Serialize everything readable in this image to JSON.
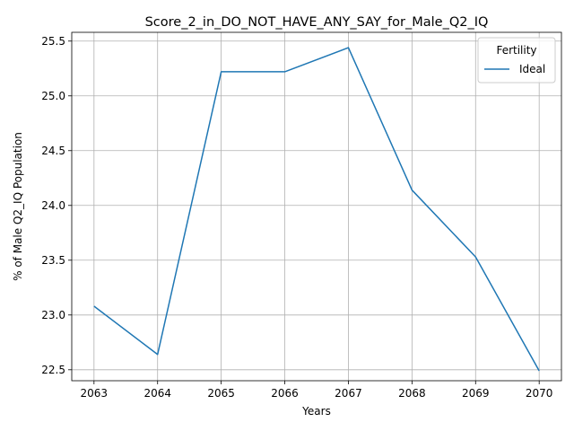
{
  "chart_data": {
    "type": "line",
    "title": "Score_2_in_DO_NOT_HAVE_ANY_SAY_for_Male_Q2_IQ",
    "xlabel": "Years",
    "ylabel": "% of Male Q2_IQ Population",
    "x": [
      2063,
      2064,
      2065,
      2066,
      2067,
      2068,
      2069,
      2070
    ],
    "xlim": [
      2062.65,
      2070.35
    ],
    "ylim": [
      22.4,
      25.58
    ],
    "xticks": [
      "2063",
      "2064",
      "2065",
      "2066",
      "2067",
      "2068",
      "2069",
      "2070"
    ],
    "yticks": [
      "22.5",
      "23.0",
      "23.5",
      "24.0",
      "24.5",
      "25.0",
      "25.5"
    ],
    "grid": true,
    "legend": {
      "title": "Fertility",
      "placement": "top-right"
    },
    "series": [
      {
        "name": "Ideal",
        "color": "#1f77b4",
        "values": [
          23.08,
          22.64,
          25.22,
          25.22,
          25.44,
          24.14,
          23.53,
          22.49
        ]
      }
    ]
  }
}
